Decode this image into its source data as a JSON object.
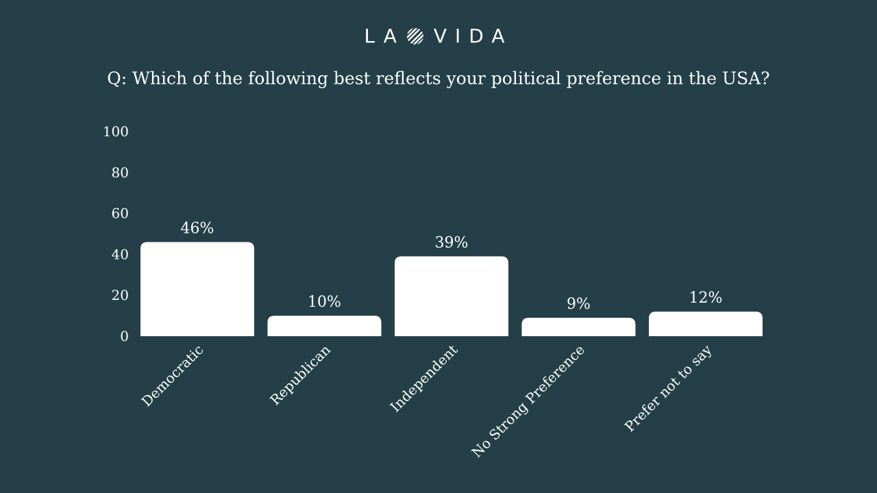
{
  "brand": {
    "left": "LA",
    "right": "VIDA",
    "icon": "striped-circle-icon"
  },
  "question": "Q: Which of the following best reflects your political preference in the USA?",
  "colors": {
    "background": "#243f47",
    "bar": "#ffffff",
    "text": "#ffffff"
  },
  "chart_data": {
    "type": "bar",
    "title": "Q: Which of the following best reflects your political preference in the USA?",
    "categories": [
      "Democratic",
      "Republican",
      "Independent",
      "No Strong Preference",
      "Prefer not to say"
    ],
    "values": [
      46,
      10,
      39,
      9,
      12
    ],
    "data_labels": [
      "46%",
      "10%",
      "39%",
      "9%",
      "12%"
    ],
    "yticks": [
      0,
      20,
      40,
      60,
      80,
      100
    ],
    "ylim": [
      0,
      100
    ],
    "xlabel": "",
    "ylabel": "",
    "grid": false,
    "legend": "none"
  }
}
